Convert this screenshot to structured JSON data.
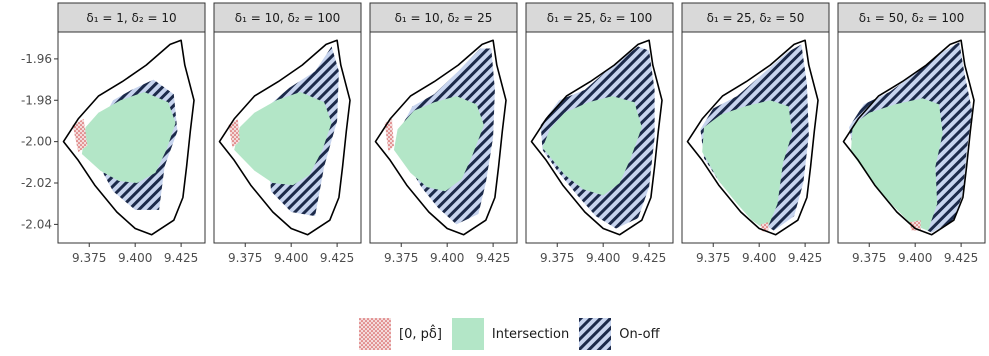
{
  "chart_data": {
    "type": "map-facets",
    "xlim": [
      9.358,
      9.438
    ],
    "ylim": [
      -2.049,
      -1.947
    ],
    "x_ticks": [
      {
        "value": 9.375,
        "label": "9.375"
      },
      {
        "value": 9.4,
        "label": "9.400"
      },
      {
        "value": 9.425,
        "label": "9.425"
      }
    ],
    "y_ticks": [
      {
        "value": -1.96,
        "label": "-1.96"
      },
      {
        "value": -1.98,
        "label": "-1.98"
      },
      {
        "value": -2.0,
        "label": "-2.00"
      },
      {
        "value": -2.02,
        "label": "-2.02"
      },
      {
        "value": -2.04,
        "label": "-2.04"
      }
    ],
    "outer_boundary": [
      [
        9.361,
        -2.0
      ],
      [
        9.369,
        -1.989
      ],
      [
        9.38,
        -1.978
      ],
      [
        9.393,
        -1.971
      ],
      [
        9.406,
        -1.963
      ],
      [
        9.419,
        -1.953
      ],
      [
        9.425,
        -1.951
      ],
      [
        9.427,
        -1.963
      ],
      [
        9.432,
        -1.98
      ],
      [
        9.43,
        -1.995
      ],
      [
        9.428,
        -2.012
      ],
      [
        9.426,
        -2.027
      ],
      [
        9.421,
        -2.038
      ],
      [
        9.409,
        -2.045
      ],
      [
        9.4,
        -2.042
      ],
      [
        9.39,
        -2.034
      ],
      [
        9.378,
        -2.021
      ],
      [
        9.369,
        -2.009
      ]
    ],
    "fill_colors": {
      "intersection": "#b3e6c7",
      "onoff_bg": "#c7d4ee",
      "onoff_stripe": "#1c2a4a",
      "zero_bg": "#f3dcdc",
      "zero_dot": "#d04040"
    },
    "facets": [
      {
        "label": "δ₁ = 1, δ₂ = 10",
        "onoff": [
          [
            9.38,
            -1.993
          ],
          [
            9.388,
            -1.98
          ],
          [
            9.398,
            -1.975
          ],
          [
            9.41,
            -1.97
          ],
          [
            9.421,
            -1.977
          ],
          [
            9.423,
            -1.995
          ],
          [
            9.416,
            -2.012
          ],
          [
            9.413,
            -2.033
          ],
          [
            9.4,
            -2.033
          ],
          [
            9.388,
            -2.024
          ],
          [
            9.38,
            -2.011
          ]
        ],
        "intersection": [
          [
            9.371,
            -2.006
          ],
          [
            9.373,
            -1.993
          ],
          [
            9.38,
            -1.986
          ],
          [
            9.392,
            -1.98
          ],
          [
            9.405,
            -1.976
          ],
          [
            9.418,
            -1.981
          ],
          [
            9.422,
            -1.991
          ],
          [
            9.417,
            -2.004
          ],
          [
            9.411,
            -2.015
          ],
          [
            9.401,
            -2.02
          ],
          [
            9.391,
            -2.019
          ],
          [
            9.381,
            -2.014
          ]
        ],
        "zero": [
          [
            9.366,
            -1.992
          ],
          [
            9.372,
            -1.989
          ],
          [
            9.374,
            -2.002
          ],
          [
            9.369,
            -2.005
          ]
        ]
      },
      {
        "label": "δ₁ = 10, δ₂ = 100",
        "onoff": [
          [
            9.386,
            -1.984
          ],
          [
            9.399,
            -1.974
          ],
          [
            9.413,
            -1.966
          ],
          [
            9.422,
            -1.954
          ],
          [
            9.426,
            -1.966
          ],
          [
            9.425,
            -1.99
          ],
          [
            9.418,
            -2.012
          ],
          [
            9.413,
            -2.036
          ],
          [
            9.4,
            -2.034
          ],
          [
            9.389,
            -2.024
          ]
        ],
        "intersection": [
          [
            9.369,
            -2.004
          ],
          [
            9.372,
            -1.993
          ],
          [
            9.38,
            -1.986
          ],
          [
            9.392,
            -1.98
          ],
          [
            9.405,
            -1.976
          ],
          [
            9.418,
            -1.981
          ],
          [
            9.422,
            -1.991
          ],
          [
            9.417,
            -2.004
          ],
          [
            9.41,
            -2.016
          ],
          [
            9.401,
            -2.021
          ],
          [
            9.39,
            -2.02
          ],
          [
            9.38,
            -2.014
          ]
        ],
        "zero": [
          [
            9.366,
            -1.992
          ],
          [
            9.371,
            -1.989
          ],
          [
            9.372,
            -2.0
          ],
          [
            9.368,
            -2.003
          ]
        ]
      },
      {
        "label": "δ₁ = 10, δ₂ = 25",
        "onoff": [
          [
            9.375,
            -1.993
          ],
          [
            9.381,
            -1.983
          ],
          [
            9.393,
            -1.977
          ],
          [
            9.406,
            -1.966
          ],
          [
            9.418,
            -1.955
          ],
          [
            9.424,
            -1.955
          ],
          [
            9.426,
            -1.975
          ],
          [
            9.425,
            -1.998
          ],
          [
            9.421,
            -2.02
          ],
          [
            9.417,
            -2.035
          ],
          [
            9.405,
            -2.04
          ],
          [
            9.395,
            -2.032
          ],
          [
            9.386,
            -2.022
          ],
          [
            9.378,
            -2.01
          ]
        ],
        "intersection": [
          [
            9.371,
            -2.004
          ],
          [
            9.373,
            -1.994
          ],
          [
            9.382,
            -1.985
          ],
          [
            9.393,
            -1.981
          ],
          [
            9.405,
            -1.978
          ],
          [
            9.416,
            -1.982
          ],
          [
            9.42,
            -1.992
          ],
          [
            9.414,
            -2.006
          ],
          [
            9.408,
            -2.018
          ],
          [
            9.399,
            -2.024
          ],
          [
            9.389,
            -2.022
          ],
          [
            9.38,
            -2.015
          ]
        ],
        "zero": [
          [
            9.366,
            -1.991
          ],
          [
            9.37,
            -1.989
          ],
          [
            9.371,
            -2.002
          ],
          [
            9.368,
            -2.005
          ]
        ]
      },
      {
        "label": "δ₁ = 25, δ₂ = 100",
        "onoff": [
          [
            9.366,
            -1.992
          ],
          [
            9.376,
            -1.98
          ],
          [
            9.39,
            -1.975
          ],
          [
            9.404,
            -1.964
          ],
          [
            9.419,
            -1.954
          ],
          [
            9.425,
            -1.956
          ],
          [
            9.428,
            -1.975
          ],
          [
            9.428,
            -1.998
          ],
          [
            9.425,
            -2.022
          ],
          [
            9.419,
            -2.037
          ],
          [
            9.407,
            -2.042
          ],
          [
            9.396,
            -2.036
          ],
          [
            9.386,
            -2.026
          ],
          [
            9.375,
            -2.014
          ],
          [
            9.367,
            -2.004
          ]
        ],
        "intersection": [
          [
            9.367,
            -2.003
          ],
          [
            9.371,
            -1.994
          ],
          [
            9.379,
            -1.986
          ],
          [
            9.392,
            -1.981
          ],
          [
            9.405,
            -1.978
          ],
          [
            9.417,
            -1.981
          ],
          [
            9.421,
            -1.993
          ],
          [
            9.415,
            -2.008
          ],
          [
            9.409,
            -2.02
          ],
          [
            9.4,
            -2.026
          ],
          [
            9.389,
            -2.023
          ],
          [
            9.379,
            -2.016
          ]
        ],
        "zero": []
      },
      {
        "label": "δ₁ = 25, δ₂ = 50",
        "onoff": [
          [
            9.368,
            -1.994
          ],
          [
            9.375,
            -1.984
          ],
          [
            9.388,
            -1.978
          ],
          [
            9.401,
            -1.968
          ],
          [
            9.415,
            -1.957
          ],
          [
            9.423,
            -1.953
          ],
          [
            9.426,
            -1.972
          ],
          [
            9.427,
            -1.997
          ],
          [
            9.424,
            -2.02
          ],
          [
            9.419,
            -2.036
          ],
          [
            9.408,
            -2.043
          ],
          [
            9.399,
            -2.038
          ],
          [
            9.389,
            -2.03
          ],
          [
            9.378,
            -2.019
          ],
          [
            9.37,
            -2.008
          ]
        ],
        "intersection": [
          [
            9.369,
            -2.005
          ],
          [
            9.37,
            -1.993
          ],
          [
            9.379,
            -1.987
          ],
          [
            9.392,
            -1.983
          ],
          [
            9.406,
            -1.98
          ],
          [
            9.416,
            -1.983
          ],
          [
            9.418,
            -1.996
          ],
          [
            9.413,
            -2.01
          ],
          [
            9.41,
            -2.03
          ],
          [
            9.404,
            -2.043
          ],
          [
            9.396,
            -2.038
          ],
          [
            9.388,
            -2.03
          ],
          [
            9.378,
            -2.019
          ]
        ],
        "zero": [
          [
            9.401,
            -2.04
          ],
          [
            9.405,
            -2.039
          ],
          [
            9.405,
            -2.044
          ],
          [
            9.401,
            -2.043
          ]
        ]
      },
      {
        "label": "δ₁ = 50, δ₂ = 100",
        "onoff": [
          [
            9.364,
            -1.993
          ],
          [
            9.372,
            -1.982
          ],
          [
            9.386,
            -1.976
          ],
          [
            9.4,
            -1.967
          ],
          [
            9.414,
            -1.957
          ],
          [
            9.424,
            -1.952
          ],
          [
            9.427,
            -1.968
          ],
          [
            9.431,
            -1.985
          ],
          [
            9.428,
            -2.005
          ],
          [
            9.426,
            -2.025
          ],
          [
            9.421,
            -2.038
          ],
          [
            9.409,
            -2.044
          ],
          [
            9.4,
            -2.04
          ],
          [
            9.389,
            -2.031
          ],
          [
            9.377,
            -2.019
          ],
          [
            9.367,
            -2.006
          ]
        ],
        "intersection": [
          [
            9.365,
            -2.005
          ],
          [
            9.366,
            -1.992
          ],
          [
            9.375,
            -1.986
          ],
          [
            9.389,
            -1.982
          ],
          [
            9.404,
            -1.979
          ],
          [
            9.413,
            -1.982
          ],
          [
            9.415,
            -1.996
          ],
          [
            9.411,
            -2.012
          ],
          [
            9.412,
            -2.03
          ],
          [
            9.407,
            -2.043
          ],
          [
            9.398,
            -2.04
          ],
          [
            9.388,
            -2.031
          ],
          [
            9.377,
            -2.02
          ]
        ],
        "zero": [
          [
            9.397,
            -2.039
          ],
          [
            9.403,
            -2.038
          ],
          [
            9.403,
            -2.043
          ],
          [
            9.398,
            -2.043
          ]
        ]
      }
    ],
    "legend": {
      "items": [
        {
          "key": "zero",
          "label": "[0, pδ̂]"
        },
        {
          "key": "intersection",
          "label": "Intersection"
        },
        {
          "key": "onoff",
          "label": "On-off"
        }
      ]
    }
  }
}
